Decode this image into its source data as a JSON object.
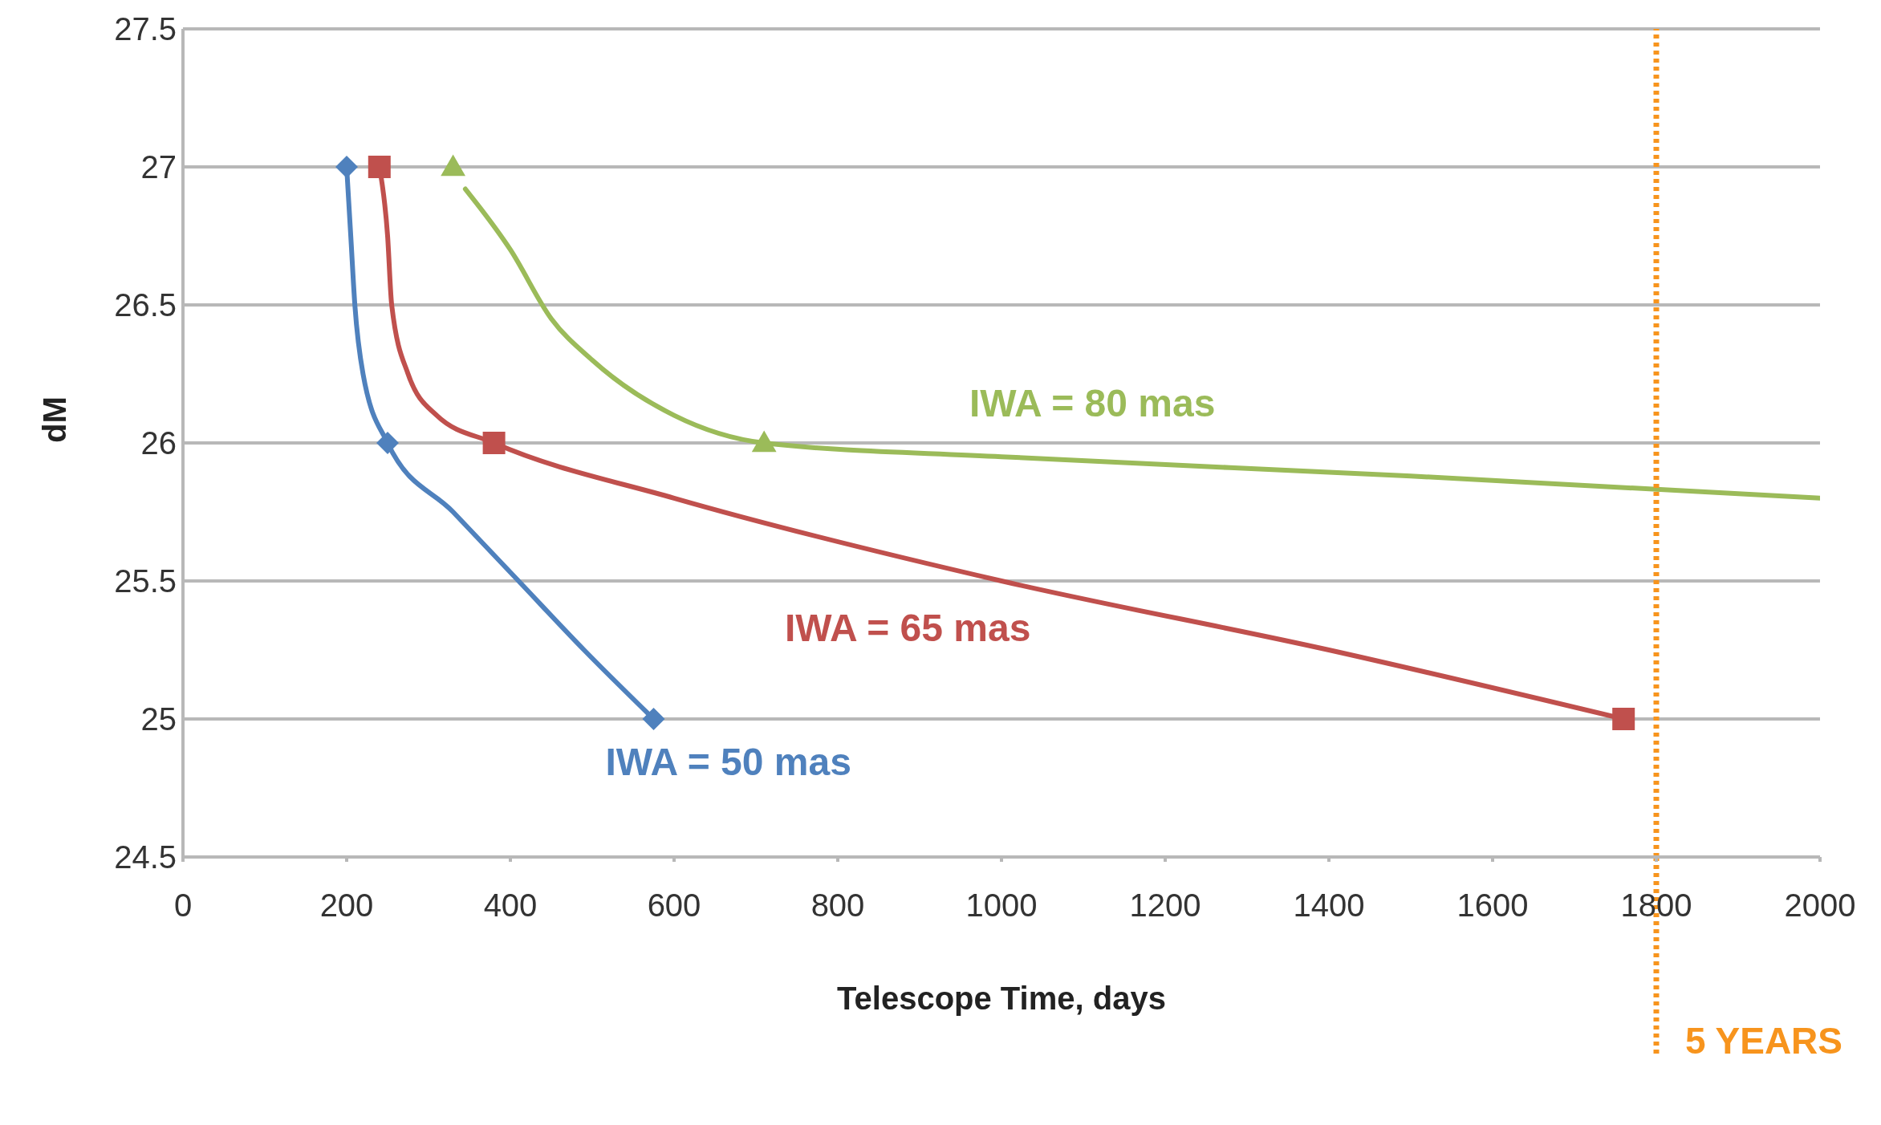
{
  "chart_data": {
    "type": "line",
    "xlabel": "Telescope Time, days",
    "ylabel": "dM",
    "xlim": [
      0,
      2000
    ],
    "xticks": [
      0,
      200,
      400,
      600,
      800,
      1000,
      1200,
      1400,
      1600,
      1800,
      2000
    ],
    "ylim": [
      24.5,
      27.5
    ],
    "yticks": [
      24.5,
      25,
      25.5,
      26,
      26.5,
      27,
      27.5
    ],
    "grid": "y",
    "line_style": "solid",
    "series": [
      {
        "name": "IWA = 50 mas",
        "color": "#4f81bd",
        "marker": "none",
        "x": [
          200,
          205,
          210,
          220,
          250,
          330,
          410,
          490,
          575
        ],
        "values": [
          27,
          26.75,
          26.5,
          26.25,
          26,
          25.75,
          25.5,
          25.25,
          25
        ]
      },
      {
        "name": "IWA = 65 mas",
        "color": "#c0504d",
        "marker": "none",
        "x": [
          240,
          250,
          255,
          275,
          310,
          380,
          600,
          1000,
          1400,
          1760
        ],
        "values": [
          27,
          26.75,
          26.5,
          26.25,
          26.1,
          26,
          25.8,
          25.5,
          25.25,
          25
        ]
      },
      {
        "name": "IWA = 80 mas",
        "color": "#9bbb59",
        "marker": "none",
        "x": [
          345,
          400,
          450,
          500,
          600,
          710,
          1000,
          1500,
          2000
        ],
        "values": [
          26.92,
          26.7,
          26.45,
          26.3,
          26.1,
          26,
          25.95,
          25.88,
          25.8
        ]
      },
      {
        "type": "scatter",
        "color": "#4f81bd",
        "marker": "diamond",
        "x": [
          200,
          250,
          575
        ],
        "values": [
          27,
          26,
          25
        ]
      },
      {
        "type": "scatter",
        "color": "#c0504d",
        "marker": "square",
        "x": [
          240,
          380,
          1760
        ],
        "values": [
          27,
          26,
          25
        ]
      },
      {
        "type": "scatter",
        "color": "#9bbb59",
        "marker": "triangle",
        "x": [
          330,
          710
        ],
        "values": [
          27,
          26
        ]
      }
    ],
    "ref_lines": [
      {
        "axis": "x",
        "value": 1800,
        "label": "5 YEARS",
        "color": "#f7941d",
        "line_style": "dotted"
      }
    ]
  }
}
